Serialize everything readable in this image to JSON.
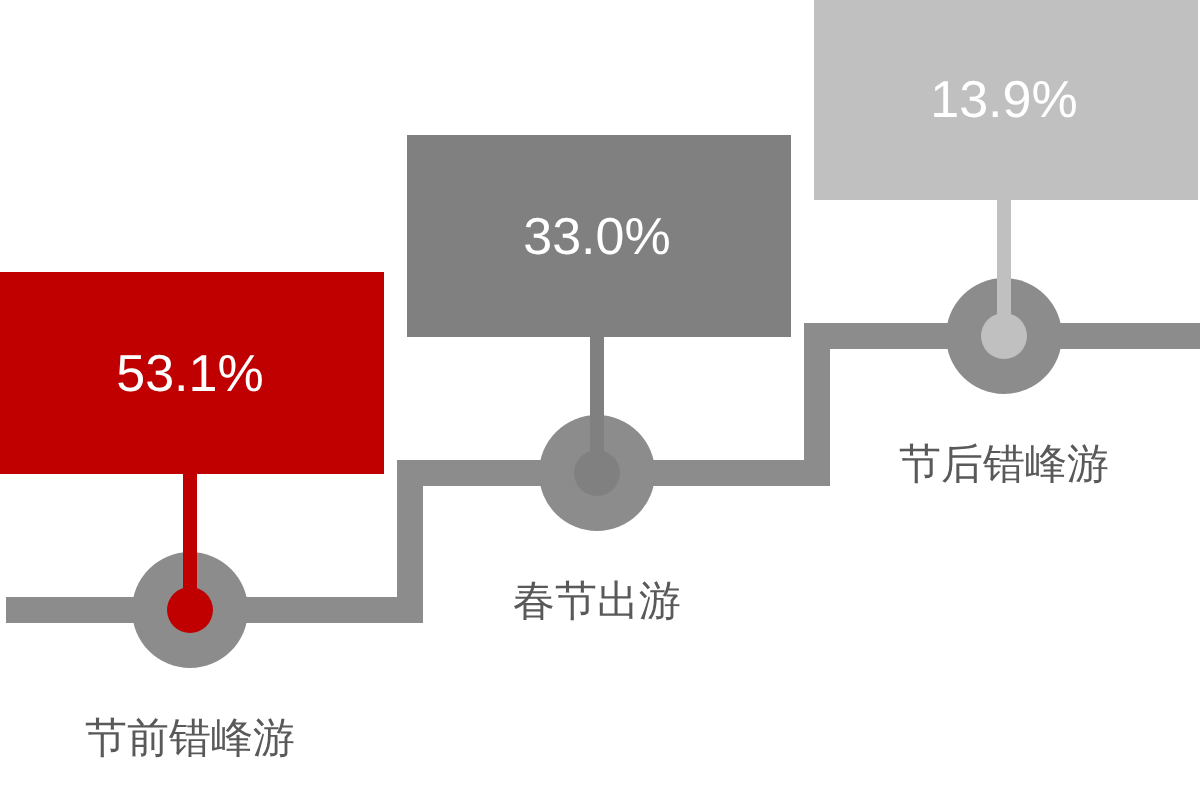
{
  "chart_data": {
    "type": "other",
    "categories": [
      "节前错峰游",
      "春节出游",
      "节后错峰游"
    ],
    "values": [
      53.1,
      33.0,
      13.9
    ],
    "value_labels": [
      "53.1%",
      "33.0%",
      "13.9%"
    ],
    "colors": [
      "#c00000",
      "#808080",
      "#c0c0c0"
    ]
  }
}
